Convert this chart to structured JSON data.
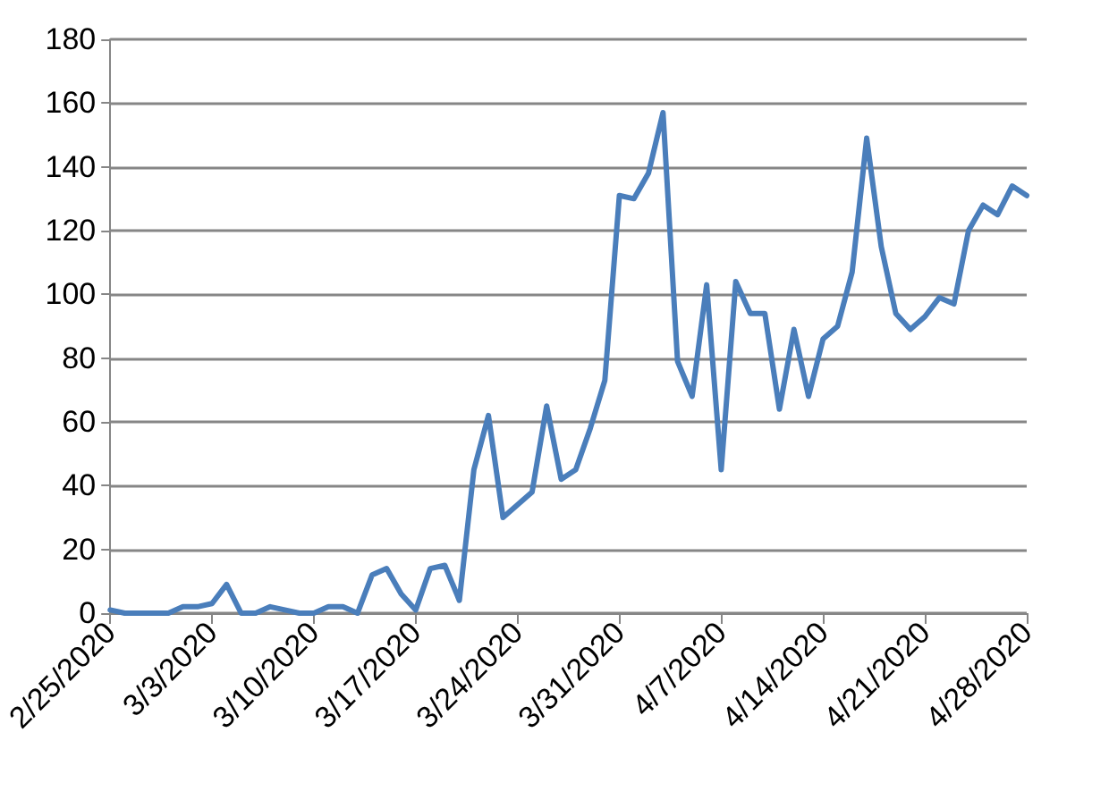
{
  "chart_data": {
    "type": "line",
    "x": [
      "2020-02-25",
      "2020-02-26",
      "2020-02-27",
      "2020-02-28",
      "2020-02-29",
      "2020-03-01",
      "2020-03-02",
      "2020-03-03",
      "2020-03-04",
      "2020-03-05",
      "2020-03-06",
      "2020-03-07",
      "2020-03-08",
      "2020-03-09",
      "2020-03-10",
      "2020-03-11",
      "2020-03-12",
      "2020-03-13",
      "2020-03-14",
      "2020-03-15",
      "2020-03-16",
      "2020-03-17",
      "2020-03-18",
      "2020-03-19",
      "2020-03-20",
      "2020-03-21",
      "2020-03-22",
      "2020-03-23",
      "2020-03-24",
      "2020-03-25",
      "2020-03-26",
      "2020-03-27",
      "2020-03-28",
      "2020-03-29",
      "2020-03-30",
      "2020-03-31",
      "2020-04-01",
      "2020-04-02",
      "2020-04-03",
      "2020-04-04",
      "2020-04-05",
      "2020-04-06",
      "2020-04-07",
      "2020-04-08",
      "2020-04-09",
      "2020-04-10",
      "2020-04-11",
      "2020-04-12",
      "2020-04-13",
      "2020-04-14",
      "2020-04-15",
      "2020-04-16",
      "2020-04-17",
      "2020-04-18",
      "2020-04-19",
      "2020-04-20",
      "2020-04-21",
      "2020-04-22",
      "2020-04-23",
      "2020-04-24",
      "2020-04-25",
      "2020-04-26",
      "2020-04-27",
      "2020-04-28"
    ],
    "series": [
      {
        "color": "#4a7ebb",
        "values": [
          1,
          0,
          0,
          0,
          0,
          2,
          2,
          3,
          9,
          0,
          0,
          2,
          1,
          0,
          0,
          2,
          2,
          0,
          12,
          14,
          6,
          1,
          14,
          15,
          4,
          45,
          62,
          30,
          34,
          38,
          65,
          42,
          45,
          58,
          73,
          131,
          130,
          138,
          157,
          79,
          68,
          103,
          45,
          104,
          94,
          94,
          64,
          89,
          68,
          86,
          90,
          107,
          149,
          115,
          94,
          89,
          93,
          99,
          97,
          120,
          128,
          125,
          134,
          131
        ]
      }
    ],
    "xlim": [
      "2020-02-25",
      "2020-04-28"
    ],
    "xticks": [
      {
        "value": "2020-02-25",
        "label": "2/25/2020"
      },
      {
        "value": "2020-03-03",
        "label": "3/3/2020"
      },
      {
        "value": "2020-03-10",
        "label": "3/10/2020"
      },
      {
        "value": "2020-03-17",
        "label": "3/17/2020"
      },
      {
        "value": "2020-03-24",
        "label": "3/24/2020"
      },
      {
        "value": "2020-03-31",
        "label": "3/31/2020"
      },
      {
        "value": "2020-04-07",
        "label": "4/7/2020"
      },
      {
        "value": "2020-04-14",
        "label": "4/14/2020"
      },
      {
        "value": "2020-04-21",
        "label": "4/21/2020"
      },
      {
        "value": "2020-04-28",
        "label": "4/28/2020"
      }
    ],
    "ylim": [
      0,
      180
    ],
    "yticks": [
      0,
      20,
      40,
      60,
      80,
      100,
      120,
      140,
      160,
      180
    ],
    "grid": "y",
    "marker": "none",
    "line_style": "solid"
  }
}
